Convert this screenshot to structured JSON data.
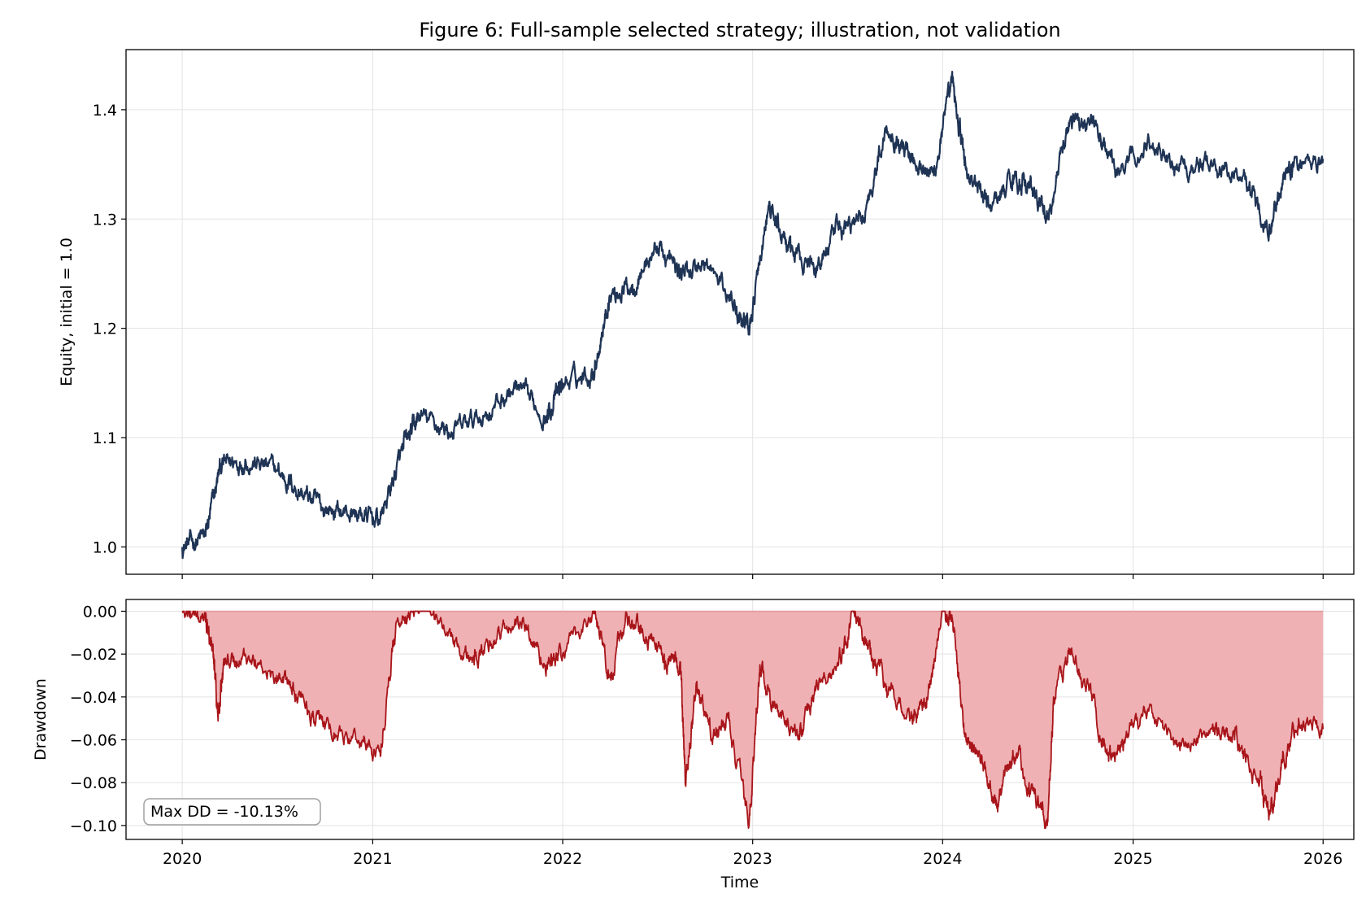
{
  "figure": {
    "title": "Figure 6: Full-sample selected strategy; illustration, not validation"
  },
  "chart_data": [
    {
      "type": "line",
      "panel": "equity",
      "ylabel": "Equity, initial = 1.0",
      "xlim": [
        "2019-09-15",
        "2026-03-01"
      ],
      "ylim": [
        0.975,
        1.455
      ],
      "yticks": [
        "1.0",
        "1.1",
        "1.2",
        "1.3",
        "1.4"
      ],
      "grid": true,
      "series": [
        {
          "color": "#1f3455",
          "x": [
            "2020-01-01",
            "2020-02-15",
            "2020-03-15",
            "2020-05-01",
            "2020-07-01",
            "2020-08-15",
            "2020-10-01",
            "2020-12-01",
            "2021-01-15",
            "2021-03-01",
            "2021-04-01",
            "2021-06-01",
            "2021-08-01",
            "2021-10-01",
            "2021-12-01",
            "2022-01-01",
            "2022-03-01",
            "2022-04-01",
            "2022-05-15",
            "2022-07-01",
            "2022-08-15",
            "2022-10-01",
            "2022-12-01",
            "2022-12-25",
            "2023-02-01",
            "2023-03-15",
            "2023-05-01",
            "2023-06-15",
            "2023-08-01",
            "2023-09-15",
            "2023-11-01",
            "2023-12-15",
            "2024-01-20",
            "2024-02-15",
            "2024-04-01",
            "2024-05-15",
            "2024-06-15",
            "2024-07-20",
            "2024-09-01",
            "2024-10-15",
            "2024-12-01",
            "2025-02-01",
            "2025-04-01",
            "2025-06-01",
            "2025-08-01",
            "2025-09-20",
            "2025-11-01",
            "2026-01-01"
          ],
          "y": [
            1.0,
            1.01,
            1.075,
            1.08,
            1.07,
            1.05,
            1.035,
            1.03,
            1.025,
            1.09,
            1.12,
            1.105,
            1.12,
            1.145,
            1.12,
            1.15,
            1.16,
            1.23,
            1.24,
            1.275,
            1.25,
            1.26,
            1.22,
            1.2,
            1.31,
            1.27,
            1.255,
            1.29,
            1.3,
            1.385,
            1.36,
            1.34,
            1.425,
            1.345,
            1.31,
            1.34,
            1.33,
            1.3,
            1.39,
            1.39,
            1.34,
            1.37,
            1.35,
            1.35,
            1.34,
            1.295,
            1.35,
            1.355
          ]
        }
      ]
    },
    {
      "type": "area",
      "panel": "drawdown",
      "xlabel": "Time",
      "ylabel": "Drawdown",
      "xlim": [
        "2019-09-15",
        "2026-03-01"
      ],
      "ylim": [
        -0.1065,
        0.0055
      ],
      "xticks": [
        "2020",
        "2021",
        "2022",
        "2023",
        "2024",
        "2025",
        "2026"
      ],
      "yticks": [
        "0.00",
        "−0.02",
        "−0.04",
        "−0.06",
        "−0.08",
        "−0.10"
      ],
      "grid": true,
      "annotation": "Max DD = -10.13%",
      "series": [
        {
          "color": "#a8151a",
          "fill": "#efb1b4",
          "x": [
            "2020-01-01",
            "2020-02-15",
            "2020-03-01",
            "2020-03-10",
            "2020-03-20",
            "2020-05-01",
            "2020-07-01",
            "2020-08-15",
            "2020-10-01",
            "2020-12-01",
            "2021-01-15",
            "2021-02-15",
            "2021-04-01",
            "2021-06-01",
            "2021-07-15",
            "2021-09-01",
            "2021-10-15",
            "2021-12-01",
            "2022-01-01",
            "2022-03-01",
            "2022-04-01",
            "2022-05-01",
            "2022-06-01",
            "2022-07-15",
            "2022-08-15",
            "2022-08-25",
            "2022-09-15",
            "2022-10-15",
            "2022-11-15",
            "2022-12-25",
            "2023-01-15",
            "2023-02-15",
            "2023-04-01",
            "2023-05-01",
            "2023-06-15",
            "2023-07-15",
            "2023-08-15",
            "2023-09-15",
            "2023-11-01",
            "2023-12-01",
            "2024-01-01",
            "2024-01-20",
            "2024-02-15",
            "2024-03-15",
            "2024-04-15",
            "2024-05-15",
            "2024-06-15",
            "2024-07-20",
            "2024-08-01",
            "2024-09-01",
            "2024-10-15",
            "2024-11-15",
            "2024-12-15",
            "2025-02-01",
            "2025-04-01",
            "2025-06-01",
            "2025-07-15",
            "2025-09-01",
            "2025-09-20",
            "2025-10-15",
            "2025-11-15",
            "2026-01-01"
          ],
          "y": [
            0.0,
            -0.005,
            -0.02,
            -0.05,
            -0.025,
            -0.02,
            -0.03,
            -0.04,
            -0.055,
            -0.06,
            -0.065,
            -0.005,
            0.0,
            -0.01,
            -0.025,
            -0.01,
            -0.005,
            -0.025,
            -0.02,
            0.0,
            -0.03,
            -0.005,
            -0.01,
            -0.02,
            -0.025,
            -0.08,
            -0.035,
            -0.06,
            -0.05,
            -0.1,
            -0.025,
            -0.045,
            -0.06,
            -0.035,
            -0.025,
            0.0,
            -0.02,
            -0.035,
            -0.05,
            -0.045,
            0.0,
            -0.005,
            -0.06,
            -0.07,
            -0.09,
            -0.065,
            -0.08,
            -0.1,
            -0.04,
            -0.02,
            -0.04,
            -0.07,
            -0.06,
            -0.045,
            -0.065,
            -0.055,
            -0.06,
            -0.08,
            -0.095,
            -0.07,
            -0.05,
            -0.055
          ]
        }
      ]
    }
  ]
}
